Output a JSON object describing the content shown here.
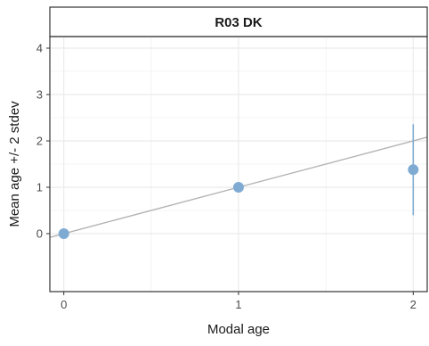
{
  "chart_data": {
    "type": "scatter",
    "facet_title": "R03 DK",
    "xlabel": "Modal age",
    "ylabel": "Mean age +/- 2 stdev",
    "xlim": [
      -0.08,
      2.08
    ],
    "ylim": [
      -1.25,
      4.25
    ],
    "x_ticks": [
      0,
      1,
      2
    ],
    "y_ticks": [
      0,
      1,
      2,
      3,
      4
    ],
    "grid": true,
    "points": [
      {
        "x": 0,
        "y": 0.0,
        "low": null,
        "high": null
      },
      {
        "x": 1,
        "y": 1.0,
        "low": null,
        "high": null
      },
      {
        "x": 2,
        "y": 1.38,
        "low": 0.4,
        "high": 2.36
      }
    ],
    "reference_line": {
      "slope": 1,
      "intercept": 0
    },
    "colors": {
      "point": "#7fabd3",
      "errorbar": "#7fabd3",
      "reference_line": "#b3b3b3",
      "grid": "#ebebeb",
      "strip_bg": "#ffffff",
      "border": "#333333"
    }
  }
}
